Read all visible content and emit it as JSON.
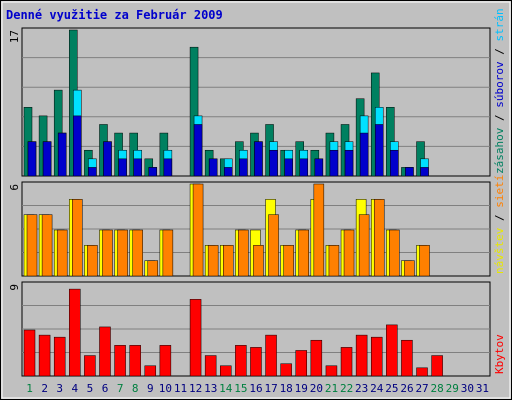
{
  "title": "Denné využitie za Február 2009",
  "colors": {
    "background": "#c0c0c0",
    "frame": "#ffffff",
    "title": "#0000cc",
    "grid": "#808080",
    "weekday_tick": "#000080",
    "weekend_tick": "#008040",
    "hits": "#008060",
    "files": "#00e0ff",
    "pages": "#ff8000",
    "visits": "#ffff00",
    "kbytes": "#ff0000"
  },
  "chart_data": {
    "type": "bar",
    "title": "Denné využitie za Február 2009",
    "categories": [
      "1",
      "2",
      "3",
      "4",
      "5",
      "6",
      "7",
      "8",
      "9",
      "10",
      "11",
      "12",
      "13",
      "14",
      "15",
      "16",
      "17",
      "18",
      "19",
      "20",
      "21",
      "22",
      "23",
      "24",
      "25",
      "26",
      "27",
      "28",
      "29",
      "30",
      "31"
    ],
    "weekend_days": [
      "1",
      "7",
      "8",
      "14",
      "15",
      "21",
      "22",
      "28",
      "29"
    ],
    "panels": [
      {
        "name": "top",
        "ymax_label": "17",
        "legend": [
          {
            "text": "zásahov",
            "color": "#008060"
          },
          {
            "text": " / ",
            "color": "#000000"
          },
          {
            "text": "súborov",
            "color": "#0000cc"
          },
          {
            "text": " / ",
            "color": "#000000"
          },
          {
            "text": "strán",
            "color": "#00c0ff"
          }
        ],
        "ylim": [
          0,
          17
        ],
        "series": [
          {
            "name": "zásahov",
            "color": "#008060",
            "values": [
              8,
              7,
              10,
              17,
              3,
              6,
              5,
              5,
              2,
              5,
              0,
              15,
              3,
              2,
              4,
              5,
              6,
              3,
              4,
              3,
              5,
              6,
              9,
              12,
              8,
              1,
              4,
              null,
              null,
              null,
              null
            ]
          },
          {
            "name": "súborov",
            "color": "#00e0ff",
            "values": [
              4,
              4,
              5,
              10,
              2,
              4,
              3,
              3,
              1,
              3,
              0,
              7,
              2,
              2,
              3,
              4,
              4,
              3,
              3,
              2,
              4,
              4,
              7,
              8,
              4,
              1,
              2,
              null,
              null,
              null,
              null
            ]
          },
          {
            "name": "strán",
            "color": "#0000cc",
            "values": [
              4,
              4,
              5,
              7,
              1,
              4,
              2,
              2,
              1,
              2,
              0,
              6,
              2,
              1,
              2,
              4,
              3,
              2,
              2,
              2,
              3,
              3,
              5,
              6,
              3,
              1,
              1,
              null,
              null,
              null,
              null
            ]
          }
        ]
      },
      {
        "name": "middle",
        "ymax_label": "6",
        "legend": [
          {
            "text": "návštev",
            "color": "#e8e800"
          },
          {
            "text": " / ",
            "color": "#000000"
          },
          {
            "text": "sietí",
            "color": "#ff8000"
          }
        ],
        "ylim": [
          0,
          6
        ],
        "series": [
          {
            "name": "návštev",
            "color": "#ffff00",
            "values": [
              4,
              4,
              3,
              5,
              2,
              3,
              3,
              3,
              1,
              3,
              0,
              6,
              2,
              2,
              3,
              3,
              5,
              2,
              3,
              5,
              2,
              3,
              5,
              5,
              3,
              1,
              2,
              null,
              null,
              null,
              null
            ]
          },
          {
            "name": "sietí",
            "color": "#ff8000",
            "values": [
              4,
              4,
              3,
              5,
              2,
              3,
              3,
              3,
              1,
              3,
              0,
              6,
              2,
              2,
              3,
              2,
              4,
              2,
              3,
              6,
              2,
              3,
              4,
              5,
              3,
              1,
              2,
              null,
              null,
              null,
              null
            ]
          }
        ]
      },
      {
        "name": "bottom",
        "ymax_label": "9",
        "legend": [
          {
            "text": "Kbytov",
            "color": "#ff0000"
          }
        ],
        "ylim": [
          0,
          9
        ],
        "series": [
          {
            "name": "Kbytov",
            "color": "#ff0000",
            "values": [
              4.5,
              4.0,
              3.8,
              8.5,
              2.0,
              4.8,
              3.0,
              3.0,
              1.0,
              3.0,
              0,
              7.5,
              2.0,
              1.0,
              3.0,
              2.8,
              4.0,
              1.2,
              2.5,
              3.5,
              1.0,
              2.8,
              4.0,
              3.8,
              5.0,
              3.5,
              0.8,
              2.0,
              null,
              null,
              null
            ]
          }
        ]
      }
    ],
    "xlabel": "",
    "ylabel": "",
    "grid": true
  }
}
